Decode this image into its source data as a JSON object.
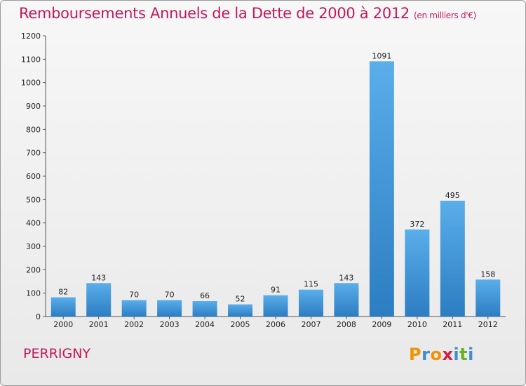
{
  "title": "Remboursements Annuels de la Dette de 2000 à 2012",
  "subtitle": "(en milliers d'€)",
  "commune": "PERRIGNY",
  "logo": {
    "letters": [
      "P",
      "r",
      "o",
      "x",
      "i",
      "t",
      "i"
    ],
    "colors": [
      "#f39200",
      "#3f8fce",
      "#f39200",
      "#d0204a",
      "#3f8fce",
      "#6ab023",
      "#3f8fce"
    ]
  },
  "colors": {
    "bar_top": "#5aaeea",
    "bar_bottom": "#2c7dc2",
    "title": "#c2185b"
  },
  "chart_data": {
    "type": "bar",
    "categories": [
      "2000",
      "2001",
      "2002",
      "2003",
      "2004",
      "2005",
      "2006",
      "2007",
      "2008",
      "2009",
      "2010",
      "2011",
      "2012"
    ],
    "values": [
      82,
      143,
      70,
      70,
      66,
      52,
      91,
      115,
      143,
      1091,
      372,
      495,
      158
    ],
    "ylim": [
      0,
      1200
    ],
    "yticks": [
      0,
      100,
      200,
      300,
      400,
      500,
      600,
      700,
      800,
      900,
      1000,
      1100,
      1200
    ],
    "grid": false,
    "title": "Remboursements Annuels de la Dette de 2000 à 2012",
    "xlabel": "",
    "ylabel": ""
  }
}
